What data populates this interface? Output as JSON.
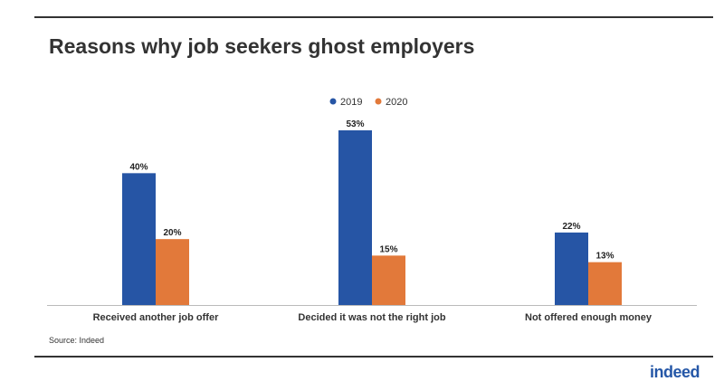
{
  "title": "Reasons why job seekers ghost employers",
  "source": "Source: Indeed",
  "logo_text": "indeed",
  "colors": {
    "series_2019": "#2655a5",
    "series_2020": "#e2793a",
    "text": "#333333"
  },
  "chart_data": {
    "type": "bar",
    "title": "Reasons why job seekers ghost employers",
    "categories": [
      "Received another job offer",
      "Decided it was not the right job",
      "Not offered enough money"
    ],
    "series": [
      {
        "name": "2019",
        "values": [
          40,
          53,
          22
        ],
        "labels": [
          "40%",
          "53%",
          "22%"
        ]
      },
      {
        "name": "2020",
        "values": [
          20,
          15,
          13
        ],
        "labels": [
          "20%",
          "15%",
          "13%"
        ]
      }
    ],
    "unit": "%",
    "ylim": [
      0,
      56
    ],
    "grid": false,
    "legend_position": "top-center"
  }
}
